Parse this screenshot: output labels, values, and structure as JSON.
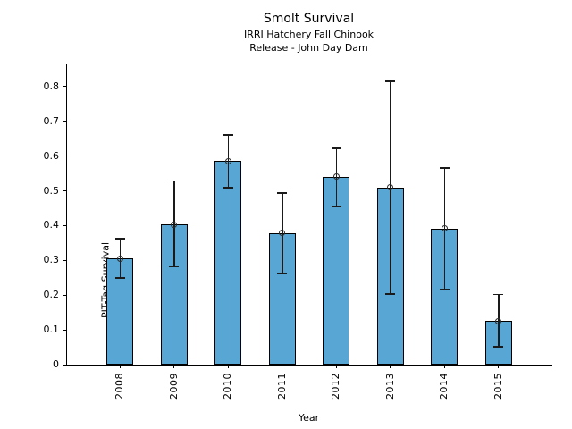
{
  "chart_data": {
    "type": "bar",
    "title": "Smolt Survival",
    "subtitle_line1": "IRRI Hatchery Fall Chinook",
    "subtitle_line2": "Release - John Day Dam",
    "xlabel": "Year",
    "ylabel": "PIT-Tag Survival",
    "categories": [
      "2008",
      "2009",
      "2010",
      "2011",
      "2012",
      "2013",
      "2014",
      "2015"
    ],
    "values": [
      0.305,
      0.403,
      0.586,
      0.378,
      0.541,
      0.51,
      0.391,
      0.125
    ],
    "error_low": [
      0.249,
      0.281,
      0.509,
      0.262,
      0.455,
      0.203,
      0.216,
      0.051
    ],
    "error_high": [
      0.363,
      0.528,
      0.661,
      0.494,
      0.622,
      0.815,
      0.565,
      0.202
    ],
    "yticks": [
      0,
      0.1,
      0.2,
      0.3,
      0.4,
      0.5,
      0.6,
      0.7,
      0.8
    ],
    "ylim": [
      0,
      0.864
    ],
    "x_tick_rotation": 90,
    "grid": false,
    "legend": null,
    "marker": "open-circle",
    "colors": {
      "bar_fill": "#58a6d4",
      "bar_edge": "#000000",
      "error_bar": "#1a1a1a",
      "marker_edge": "#2b2b2b",
      "axis": "#000000",
      "background": "#ffffff"
    }
  }
}
